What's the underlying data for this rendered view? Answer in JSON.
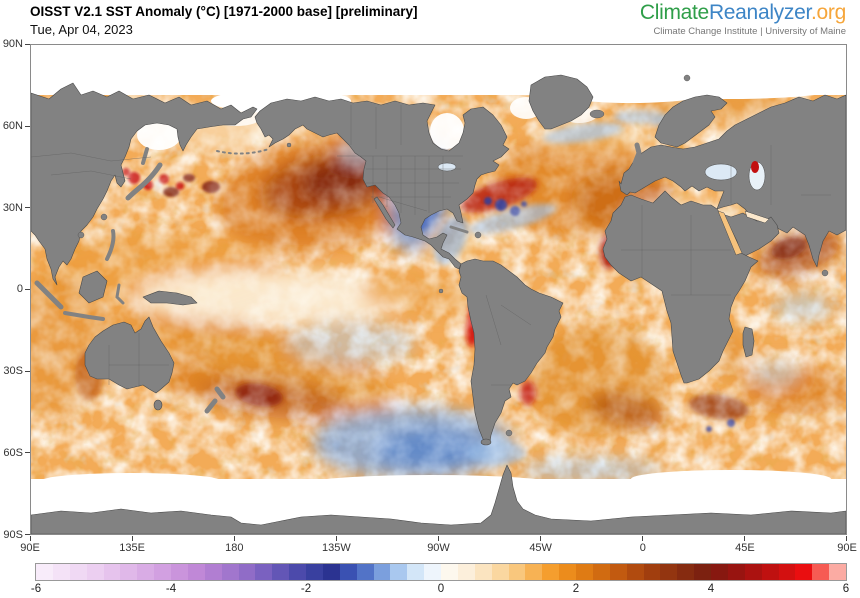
{
  "header": {
    "title": "OISST V2.1 SST Anomaly (°C) [1971-2000 base] [preliminary]",
    "date": "Tue, Apr 04, 2023"
  },
  "logo": {
    "part1": "Climate",
    "part2": "Reanalyzer",
    "part3": ".org",
    "subtitle": "Climate Change Institute | University of Maine",
    "color_green": "#2f9e49",
    "color_blue": "#3d85c6",
    "color_orange": "#f6a63b"
  },
  "map_axes": {
    "lat_ticks": [
      "90N",
      "60N",
      "30N",
      "0",
      "30S",
      "60S",
      "90S"
    ],
    "lon_ticks": [
      "90E",
      "135E",
      "180",
      "135W",
      "90W",
      "45W",
      "0",
      "45E",
      "90E"
    ]
  },
  "colorbar": {
    "ticks": [
      "-6",
      "-4",
      "-2",
      "0",
      "2",
      "4",
      "6"
    ],
    "units": "°C",
    "palette": [
      "#f8ecfa",
      "#f4e2f7",
      "#f0d9f4",
      "#eccff1",
      "#e6c3ed",
      "#e0b8e9",
      "#d9ace5",
      "#d2a0e1",
      "#ca94dc",
      "#c088d7",
      "#b17ed2",
      "#a176cd",
      "#906cc7",
      "#7a61c0",
      "#6356b6",
      "#4c4aab",
      "#39409f",
      "#2b3391",
      "#3a51b2",
      "#5273c7",
      "#7b9fdd",
      "#a9c8ef",
      "#d3e6f8",
      "#eef5fc",
      "#fdf8ee",
      "#fcefdb",
      "#fbe4c0",
      "#fad7a0",
      "#f9c77d",
      "#f7b254",
      "#f59e2e",
      "#ec8c1c",
      "#df7b14",
      "#d16b11",
      "#c25a10",
      "#b14b0f",
      "#a13e0e",
      "#933510",
      "#862b10",
      "#7c2110",
      "#871810",
      "#981410",
      "#ab1210",
      "#bf1110",
      "#d31010",
      "#ea0e10",
      "#f65b53",
      "#fbaba3"
    ]
  },
  "colors": {
    "land": "#828282",
    "land_border": "#4a4a4a",
    "ocean_base": "#f3ab57",
    "ice": "#ffffff",
    "frame": "#8a8a8a"
  },
  "chart_data": {
    "type": "heatmap",
    "title": "OISST V2.1 SST Anomaly (°C) [1971-2000 base] [preliminary]",
    "date": "Tue, Apr 04, 2023",
    "variable": "sea surface temperature anomaly",
    "units": "°C",
    "baseline": "1971-2000",
    "projection": "equirectangular global map, left edge at 90E, center 90W",
    "lat_tick_labels": [
      "90N",
      "60N",
      "30N",
      "0",
      "30S",
      "60S",
      "90S"
    ],
    "lon_tick_labels": [
      "90E",
      "135E",
      "180",
      "135W",
      "90W",
      "45W",
      "0",
      "45E",
      "90E"
    ],
    "colorbar": {
      "min": -6,
      "max": 6,
      "segment_step": 0.25,
      "tick_values": [
        -6,
        -4,
        -2,
        0,
        2,
        4,
        6
      ],
      "legend_position": "bottom"
    },
    "notable_features": [
      {
        "region": "Central North Pacific 35-45N",
        "anomaly_c": "+2 to +4"
      },
      {
        "region": "Kuroshio region off Japan",
        "anomaly_c": "+4 to +5 (bright red spots)"
      },
      {
        "region": "US West Coast / NE Pacific",
        "anomaly_c": "-1 to -2.5 (cool blue)"
      },
      {
        "region": "Peru coastal strip (coastal El Nino)",
        "anomaly_c": "+4 to +5"
      },
      {
        "region": "Southeast Pacific 45-60S",
        "anomaly_c": "-1 to -2"
      },
      {
        "region": "Gulf Stream front off NE United States",
        "anomaly_c": "mixed +4 and -3 eddies"
      },
      {
        "region": "Northeast Atlantic",
        "anomaly_c": "+1 to +3"
      },
      {
        "region": "West Africa coast near Senegal",
        "anomaly_c": "+3 to +4"
      },
      {
        "region": "Arabian Sea",
        "anomaly_c": "+2 to +3"
      },
      {
        "region": "South Atlantic 30-50S",
        "anomaly_c": "+2 to +4"
      },
      {
        "region": "East of New Zealand 40-50S",
        "anomaly_c": "+3 to +4"
      },
      {
        "region": "Agulhas region south of Africa",
        "anomaly_c": "mixed +4 and -2 eddies"
      },
      {
        "region": "High-latitude sea-ice zones",
        "anomaly_c": "masked white (no data)"
      }
    ]
  }
}
